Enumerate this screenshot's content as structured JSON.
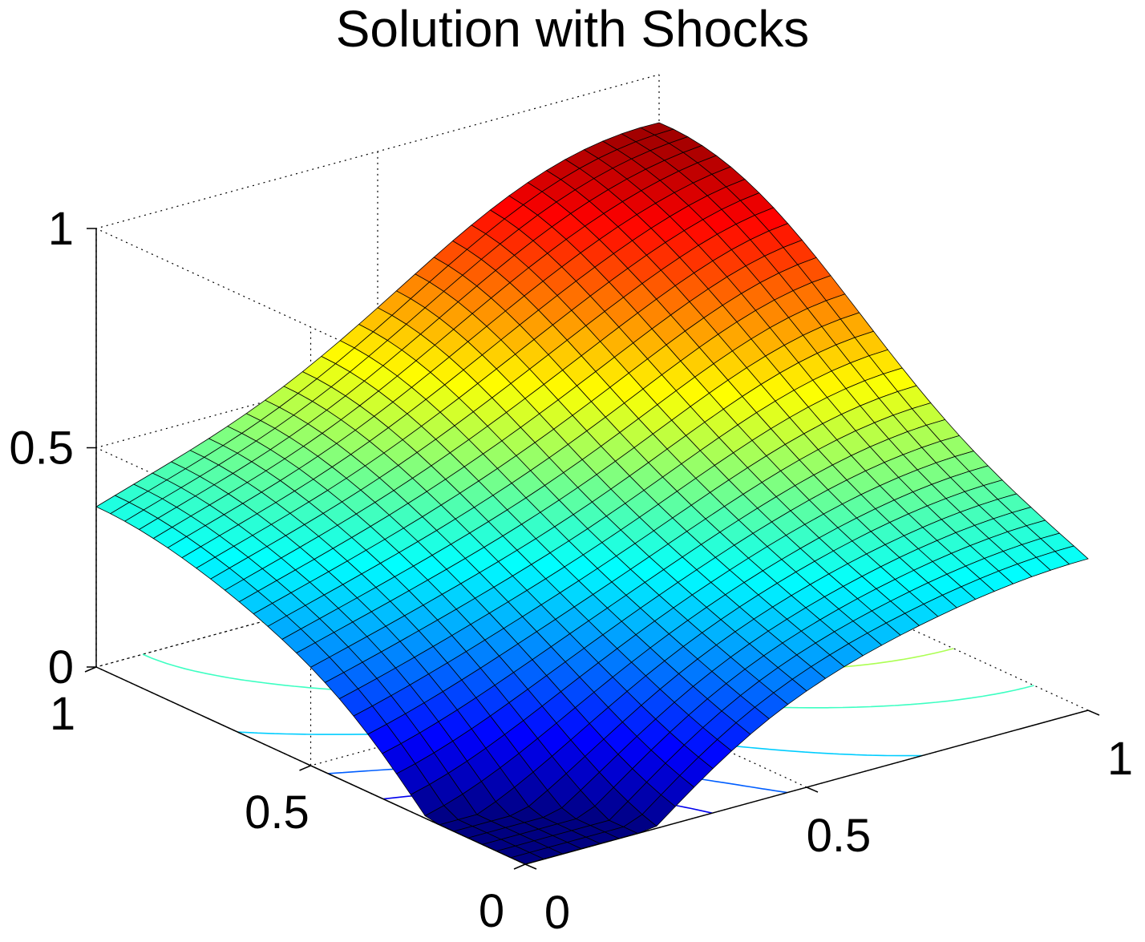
{
  "chart_data": {
    "type": "surface",
    "title": "Solution with Shocks",
    "colormap": "jet",
    "colormap_stops": [
      "#00008f",
      "#0000ff",
      "#00ffff",
      "#ffff00",
      "#ff0000",
      "#800000"
    ],
    "edge_color": "#000000",
    "grid": "on",
    "contour_plot_on_floor": true,
    "mesh_resolution": [
      31,
      31
    ],
    "x": {
      "ticks": [
        0,
        0.5,
        1
      ],
      "tick_labels": [
        "0",
        "0.5",
        "1"
      ],
      "lim": [
        0,
        1
      ]
    },
    "y": {
      "ticks": [
        0,
        0.5,
        1
      ],
      "tick_labels": [
        "0",
        "0.5",
        "1"
      ],
      "lim": [
        0,
        1
      ]
    },
    "z": {
      "ticks": [
        0,
        0.5,
        1
      ],
      "tick_labels": [
        "0",
        "0.5",
        "1"
      ],
      "lim": [
        0,
        1
      ]
    },
    "surface_summary": {
      "peak_z": 0.92,
      "peak_xy": [
        1,
        1
      ],
      "corner_z_near": 0.0,
      "corner_z_left": 0.28,
      "corner_z_right": 0.25
    },
    "contour_levels": [
      0.1,
      0.2,
      0.3,
      0.4,
      0.5,
      0.6,
      0.7
    ]
  }
}
